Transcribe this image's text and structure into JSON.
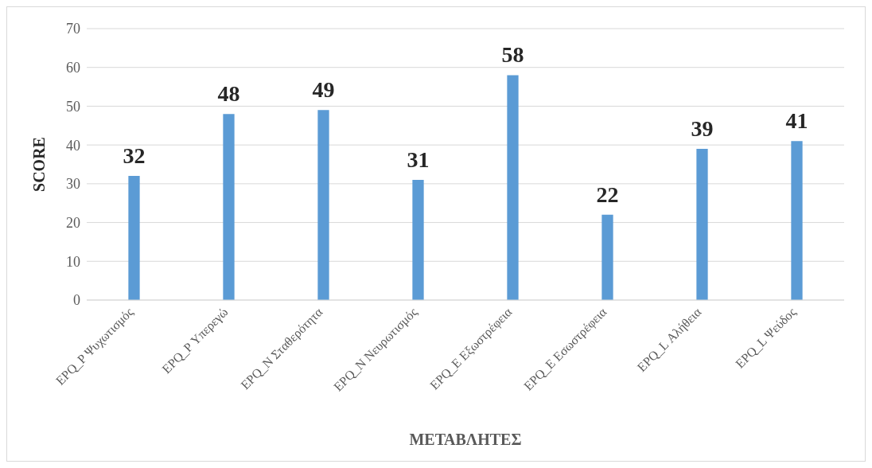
{
  "chart_data": {
    "type": "bar",
    "xlabel": "ΜΕΤΑΒΛΗΤΕΣ",
    "ylabel": "SCORE",
    "categories": [
      "EPQ_P Ψυχωτισμός",
      "EPQ_P Υπερεγώ",
      "EPQ_N Σταθερότητα",
      "EPQ_N Νευρωτισμός",
      "EPQ_E Εξωστρέφεια",
      "EPQ_E Εσωστρέφεια",
      "EPQ_L Αλήθεια",
      "EPQ_L Ψεύδος"
    ],
    "values": [
      32,
      48,
      49,
      31,
      58,
      22,
      39,
      41
    ],
    "color": "#5b9bd5",
    "ylim": [
      0,
      70
    ],
    "yticks": [
      0,
      10,
      20,
      30,
      40,
      50,
      60,
      70
    ],
    "grid": "y",
    "data_labels": true
  }
}
